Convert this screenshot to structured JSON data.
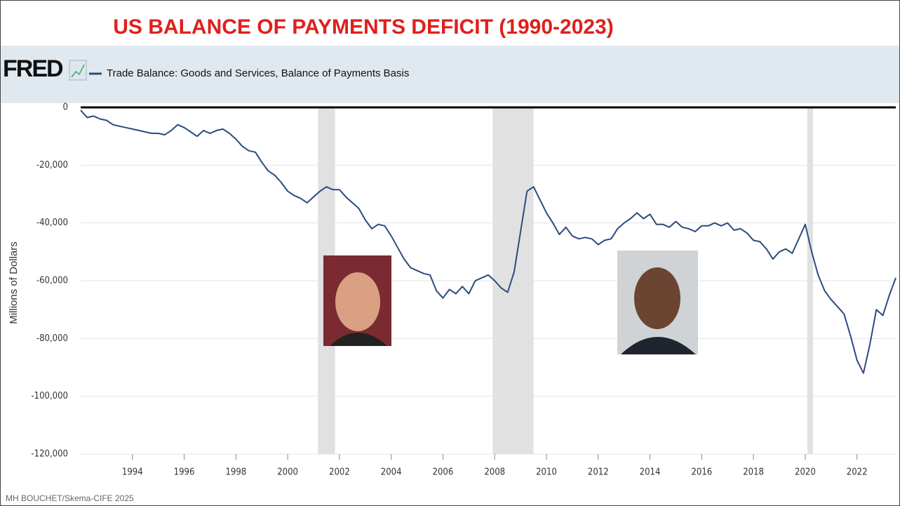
{
  "chart_data": {
    "type": "line",
    "title": "US BALANCE OF PAYMENTS DEFICIT (1990-2023)",
    "logo": "FRED",
    "y_label": "Millions of Dollars",
    "footer": "MH BOUCHET/Skema-CIFE 2025",
    "series": [
      {
        "name": "Trade Balance: Goods and Services, Balance of Payments Basis",
        "color": "#2b4c7e",
        "values": [
          -1000,
          -3500,
          -3000,
          -4000,
          -4500,
          -6000,
          -6500,
          -7000,
          -7500,
          -8000,
          -8500,
          -9000,
          -9000,
          -9500,
          -8000,
          -6000,
          -7000,
          -8500,
          -10000,
          -8000,
          -9000,
          -8000,
          -7500,
          -9000,
          -11000,
          -13500,
          -15000,
          -15500,
          -19000,
          -22000,
          -23500,
          -26000,
          -29000,
          -30500,
          -31500,
          -33000,
          -31000,
          -29000,
          -27500,
          -28500,
          -28500,
          -31000,
          -33000,
          -35000,
          -39000,
          -42000,
          -40500,
          -41000,
          -44500,
          -48500,
          -52500,
          -55500,
          -56500,
          -57500,
          -58000,
          -63500,
          -66000,
          -63000,
          -64500,
          -62000,
          -64500,
          -60000,
          -59000,
          -58000,
          -60000,
          -62500,
          -64000,
          -57000,
          -43000,
          -29000,
          -27500,
          -32000,
          -36500,
          -40000,
          -44000,
          -41500,
          -44500,
          -45500,
          -45000,
          -45500,
          -47500,
          -46000,
          -45500,
          -42000,
          -40000,
          -38500,
          -36500,
          -38500,
          -37000,
          -40500,
          -40500,
          -41500,
          -39500,
          -41500,
          -42000,
          -43000,
          -41000,
          -41000,
          -40000,
          -41000,
          -40000,
          -42500,
          -42000,
          -43500,
          -46000,
          -46500,
          -49000,
          -52500,
          -50000,
          -49000,
          -50500,
          -45500,
          -40500,
          -50000,
          -58000,
          -63500,
          -66500,
          -69000,
          -71500,
          -79000,
          -87500,
          -92000,
          -82000,
          -70000,
          -72000,
          -65000,
          -59000
        ]
      }
    ],
    "x": [
      1992,
      1992.25,
      1992.5,
      1992.75,
      1993,
      1993.25,
      1993.5,
      1993.75,
      1994,
      1994.25,
      1994.5,
      1994.75,
      1995,
      1995.25,
      1995.5,
      1995.75,
      1996,
      1996.25,
      1996.5,
      1996.75,
      1997,
      1997.25,
      1997.5,
      1997.75,
      1998,
      1998.25,
      1998.5,
      1998.75,
      1999,
      1999.25,
      1999.5,
      1999.75,
      2000,
      2000.25,
      2000.5,
      2000.75,
      2001,
      2001.25,
      2001.5,
      2001.75,
      2002,
      2002.25,
      2002.5,
      2002.75,
      2003,
      2003.25,
      2003.5,
      2003.75,
      2004,
      2004.25,
      2004.5,
      2004.75,
      2005,
      2005.25,
      2005.5,
      2005.75,
      2006,
      2006.25,
      2006.5,
      2006.75,
      2007,
      2007.25,
      2007.5,
      2007.75,
      2008,
      2008.25,
      2008.5,
      2008.75,
      2009,
      2009.25,
      2009.5,
      2009.75,
      2010,
      2010.25,
      2010.5,
      2010.75,
      2011,
      2011.25,
      2011.5,
      2011.75,
      2012,
      2012.25,
      2012.5,
      2012.75,
      2013,
      2013.25,
      2013.5,
      2013.75,
      2014,
      2014.25,
      2014.5,
      2014.75,
      2015,
      2015.25,
      2015.5,
      2015.75,
      2016,
      2016.25,
      2016.5,
      2016.75,
      2017,
      2017.25,
      2017.5,
      2017.75,
      2018,
      2018.25,
      2018.5,
      2018.75,
      2019,
      2019.25,
      2019.5,
      2019.75,
      2020,
      2020.25,
      2020.5,
      2020.75,
      2021,
      2021.25,
      2021.5,
      2021.75,
      2022,
      2022.25,
      2022.5,
      2022.75,
      2023,
      2023.25,
      2023.5
    ],
    "xlim": [
      1992,
      2023.5
    ],
    "xticks": [
      1994,
      1996,
      1998,
      2000,
      2002,
      2004,
      2006,
      2008,
      2010,
      2012,
      2014,
      2016,
      2018,
      2020,
      2022
    ],
    "ylim": [
      -120000,
      0
    ],
    "yticks": [
      {
        "value": -120000,
        "label": "-120,000"
      },
      {
        "value": -100000,
        "label": "-100,000"
      },
      {
        "value": -80000,
        "label": "-80,000"
      },
      {
        "value": -60000,
        "label": "-60,000"
      },
      {
        "value": -40000,
        "label": "-40,000"
      },
      {
        "value": -20000,
        "label": "-20,000"
      },
      0
    ],
    "shaded_periods": [
      [
        2001.17,
        2001.83
      ],
      [
        2007.92,
        2009.5
      ],
      [
        2020.08,
        2020.3
      ]
    ],
    "shade_color": "#e1e1e1",
    "grid": true
  }
}
